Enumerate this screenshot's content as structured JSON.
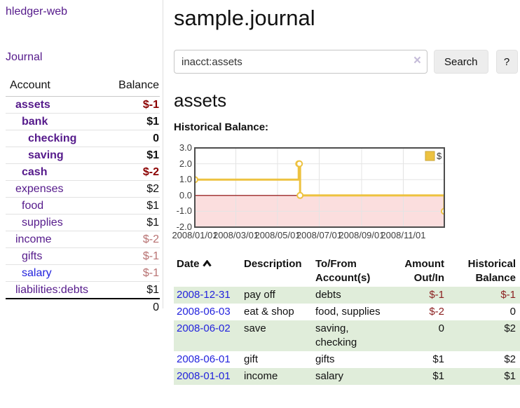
{
  "app": {
    "title": "hledger-web",
    "nav_journal": "Journal"
  },
  "sidebar": {
    "columns": [
      "Account",
      "Balance"
    ],
    "accounts": [
      {
        "name": "assets",
        "balance": "$-1",
        "level": 1,
        "bold": true,
        "balance_color": "negative-strong"
      },
      {
        "name": "bank",
        "balance": "$1",
        "level": 2,
        "bold": true,
        "balance_color": "normal"
      },
      {
        "name": "checking",
        "balance": "0",
        "level": 3,
        "bold": true,
        "balance_color": "normal"
      },
      {
        "name": "saving",
        "balance": "$1",
        "level": 3,
        "bold": true,
        "balance_color": "normal"
      },
      {
        "name": "cash",
        "balance": "$-2",
        "level": 2,
        "bold": true,
        "balance_color": "negative-strong"
      },
      {
        "name": "expenses",
        "balance": "$2",
        "level": 1,
        "bold": false,
        "balance_color": "normal"
      },
      {
        "name": "food",
        "balance": "$1",
        "level": 2,
        "bold": false,
        "balance_color": "normal"
      },
      {
        "name": "supplies",
        "balance": "$1",
        "level": 2,
        "bold": false,
        "balance_color": "normal"
      },
      {
        "name": "income",
        "balance": "$-2",
        "level": 1,
        "bold": false,
        "balance_color": "negative-muted"
      },
      {
        "name": "gifts",
        "balance": "$-1",
        "level": 2,
        "bold": false,
        "balance_color": "negative-muted"
      },
      {
        "name": "salary",
        "balance": "$-1",
        "level": 2,
        "bold": false,
        "balance_color": "negative-muted",
        "link_color": "blue"
      },
      {
        "name": "liabilities:debts",
        "balance": "$1",
        "level": 1,
        "bold": false,
        "balance_color": "normal"
      }
    ],
    "total": "0"
  },
  "header": {
    "title": "sample.journal"
  },
  "search": {
    "value": "inacct:assets",
    "clear_icon": "×",
    "button": "Search",
    "help_button": "?"
  },
  "account_page": {
    "title": "assets",
    "chart_label": "Historical Balance:"
  },
  "chart_data": {
    "type": "line",
    "subtype": "step-after",
    "title": "Historical Balance",
    "xlim": [
      "2008-01-01",
      "2008-12-31"
    ],
    "ylim": [
      -2,
      3
    ],
    "x_ticks": [
      "2008/01/01",
      "2008/03/01",
      "2008/05/01",
      "2008/07/01",
      "2008/09/01",
      "2008/11/01"
    ],
    "y_ticks": [
      "3.0",
      "2.0",
      "1.0",
      "0.0",
      "-1.0",
      "-2.0"
    ],
    "legend": {
      "position": "top-right"
    },
    "grid": true,
    "series": [
      {
        "name": "$",
        "color": "#edc240",
        "points": [
          [
            "2008-01-01",
            1
          ],
          [
            "2008-06-01",
            2
          ],
          [
            "2008-06-02",
            2
          ],
          [
            "2008-06-03",
            0
          ],
          [
            "2008-12-31",
            -1
          ]
        ]
      }
    ],
    "negative_region_color": "#fbdede",
    "zero_line_color": "#8b0000",
    "grid_color": "#e4e4e4",
    "border_color": "#4d4d4d"
  },
  "register": {
    "columns": [
      "Date",
      "Description",
      "To/From Account(s)",
      "Amount Out/In",
      "Historical Balance"
    ],
    "rows": [
      {
        "date": "2008-12-31",
        "description": "pay off",
        "accounts": "debts",
        "amount": "$-1",
        "balance": "$-1",
        "amount_negative": true,
        "balance_negative": true,
        "shaded": true
      },
      {
        "date": "2008-06-03",
        "description": "eat & shop",
        "accounts": "food, supplies",
        "amount": "$-2",
        "balance": "0",
        "amount_negative": true,
        "balance_negative": false,
        "shaded": false
      },
      {
        "date": "2008-06-02",
        "description": "save",
        "accounts": "saving, checking",
        "amount": "0",
        "balance": "$2",
        "amount_negative": false,
        "balance_negative": false,
        "shaded": true
      },
      {
        "date": "2008-06-01",
        "description": "gift",
        "accounts": "gifts",
        "amount": "$1",
        "balance": "$2",
        "amount_negative": false,
        "balance_negative": false,
        "shaded": false
      },
      {
        "date": "2008-01-01",
        "description": "income",
        "accounts": "salary",
        "amount": "$1",
        "balance": "$1",
        "amount_negative": false,
        "balance_negative": false,
        "shaded": true
      }
    ]
  },
  "colors": {
    "link_purple": "#551a8b",
    "link_blue": "#2323dd",
    "negative_strong": "#8b0000",
    "negative_muted": "#b87272",
    "register_negative": "#8b1f1f",
    "row_shade_green": "#e0edda",
    "series_gold": "#edc240"
  }
}
